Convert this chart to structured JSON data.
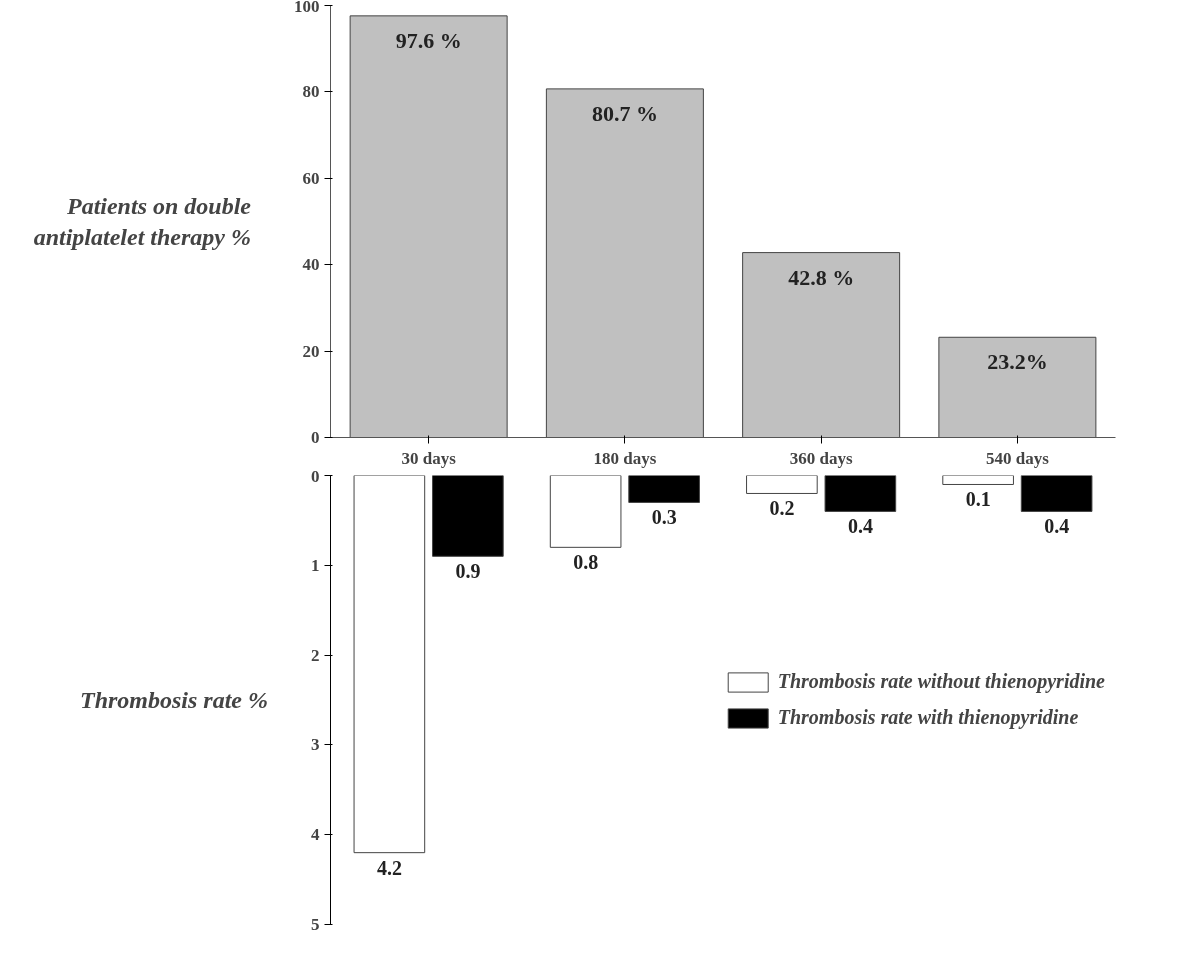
{
  "chart_data": [
    {
      "type": "bar",
      "ylabel": "Patients on double antiplatelet therapy %",
      "categories": [
        "30 days",
        "180 days",
        "360 days",
        "540 days"
      ],
      "values": [
        97.6,
        80.7,
        42.8,
        23.2
      ],
      "color": "#c0c0c0",
      "value_labels": [
        "97.6 %",
        "80.7 %",
        "42.8 %",
        "23.2%"
      ],
      "ylim": [
        0,
        100
      ],
      "yticks": [
        0,
        20,
        40,
        60,
        80,
        100
      ],
      "grid": false
    },
    {
      "type": "bar",
      "ylabel": "Thrombosis rate %",
      "categories": [
        "30 days",
        "180 days",
        "360 days",
        "540 days"
      ],
      "series": [
        {
          "name": "Thrombosis rate without thienopyridine",
          "color": "#ffffff",
          "values": [
            4.2,
            0.8,
            0.2,
            0.1
          ]
        },
        {
          "name": "Thrombosis rate with thienopyridine",
          "color": "#000000",
          "values": [
            0.9,
            0.3,
            0.4,
            0.4
          ]
        }
      ],
      "ylim": [
        5,
        0
      ],
      "yticks": [
        0,
        1,
        2,
        3,
        4,
        5
      ],
      "data_labels": true,
      "legend": "right",
      "grid": false,
      "tick_labels": "y"
    }
  ]
}
